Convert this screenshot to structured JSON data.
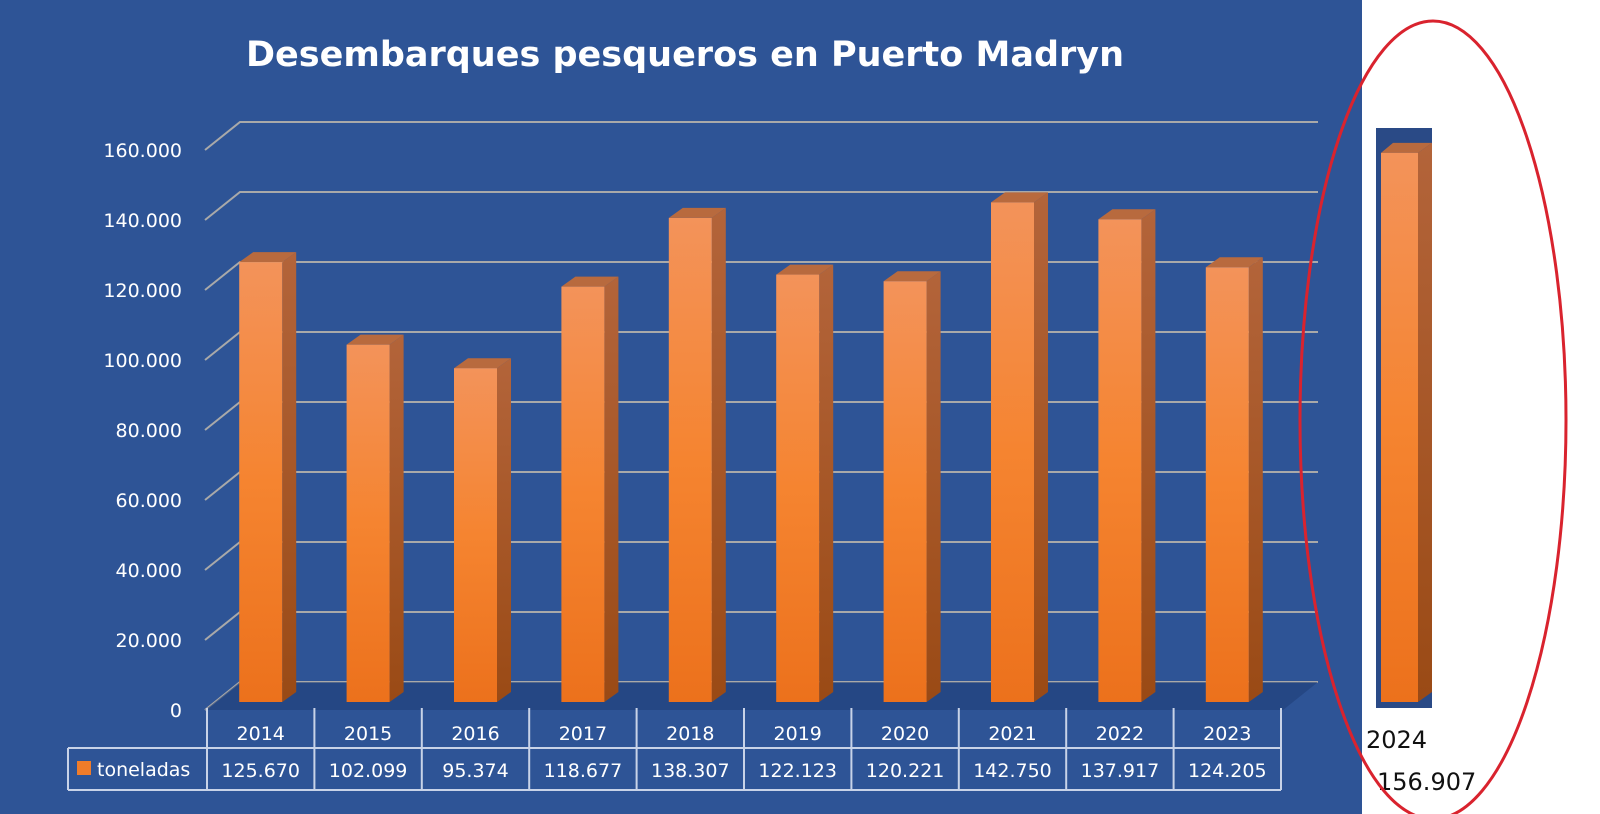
{
  "chart_data": {
    "type": "bar",
    "title": "Desembarques pesqueros en Puerto Madryn",
    "categories": [
      "2014",
      "2015",
      "2016",
      "2017",
      "2018",
      "2019",
      "2020",
      "2021",
      "2022",
      "2023"
    ],
    "series": [
      {
        "name": "toneladas",
        "values": [
          125670,
          102099,
          95374,
          118677,
          138307,
          122123,
          120221,
          142750,
          137917,
          124205
        ]
      }
    ],
    "value_labels": [
      "125.670",
      "102.099",
      "95.374",
      "118.677",
      "138.307",
      "122.123",
      "120.221",
      "142.750",
      "137.917",
      "124.205"
    ],
    "y_ticks": [
      "0",
      "20.000",
      "40.000",
      "60.000",
      "80.000",
      "100.000",
      "120.000",
      "140.000",
      "160.000"
    ],
    "ylim": [
      0,
      160000
    ],
    "grid": true,
    "legend": "data-table",
    "style": "3d-column",
    "colors": {
      "background": "#2e5496",
      "bar": "#f07c2a",
      "gridline": "#a9a9a9",
      "highlight_ellipse": "#d9232e"
    },
    "annotation": {
      "category": "2024",
      "value": 156907,
      "value_label": "156.907"
    }
  }
}
